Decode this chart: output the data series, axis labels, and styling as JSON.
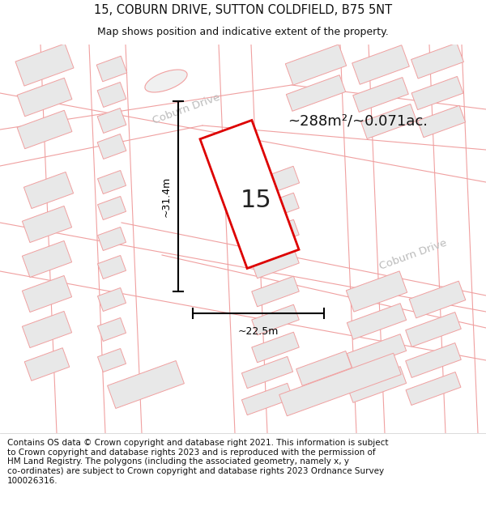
{
  "title": "15, COBURN DRIVE, SUTTON COLDFIELD, B75 5NT",
  "subtitle": "Map shows position and indicative extent of the property.",
  "footer": "Contains OS data © Crown copyright and database right 2021. This information is subject\nto Crown copyright and database rights 2023 and is reproduced with the permission of\nHM Land Registry. The polygons (including the associated geometry, namely x, y\nco-ordinates) are subject to Crown copyright and database rights 2023 Ordnance Survey\n100026316.",
  "area_label": "~288m²/~0.071ac.",
  "property_number": "15",
  "width_label": "~22.5m",
  "height_label": "~31.4m",
  "road_label_1": "Coburn Drive",
  "road_label_2": "Coburn Drive",
  "bg_color": "#ffffff",
  "building_fill": "#e8e8e8",
  "building_stroke": "#f0a0a0",
  "road_line_color": "#f0a0a0",
  "plot_stroke": "#dd0000",
  "plot_fill": "#ffffff",
  "dim_color": "#000000",
  "road_text_color": "#aaaaaa",
  "area_text_color": "#111111",
  "title_color": "#111111",
  "footer_color": "#111111",
  "title_fontsize": 10.5,
  "subtitle_fontsize": 9,
  "footer_fontsize": 7.5
}
